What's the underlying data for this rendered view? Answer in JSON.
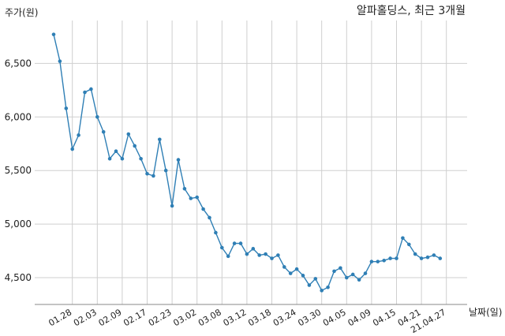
{
  "chart_data": {
    "type": "line",
    "title": "알파홀딩스, 최근 3개월",
    "ylabel": "주가(원)",
    "xlabel": "날짜(일)",
    "ylim": [
      4250,
      6900
    ],
    "yticks": [
      4500,
      5000,
      5500,
      6000,
      6500
    ],
    "ytick_labels": [
      "4,500",
      "5,000",
      "5,500",
      "6,000",
      "6,500"
    ],
    "xtick_labels": [
      "01.28",
      "02.03",
      "02.09",
      "02.17",
      "02.23",
      "03.02",
      "03.08",
      "03.12",
      "03.18",
      "03.24",
      "03.30",
      "04.05",
      "04.09",
      "04.15",
      "04.21",
      "21.04.27"
    ],
    "xtick_index": [
      3,
      7,
      11,
      15,
      19,
      23,
      27,
      31,
      35,
      39,
      43,
      47,
      51,
      55,
      59,
      63
    ],
    "grid": true,
    "series": [
      {
        "color": "#2f7fb5",
        "values": [
          6770,
          6520,
          6080,
          5700,
          5830,
          6230,
          6260,
          6000,
          5860,
          5610,
          5680,
          5610,
          5840,
          5730,
          5610,
          5470,
          5450,
          5790,
          5500,
          5170,
          5600,
          5330,
          5240,
          5250,
          5140,
          5060,
          4920,
          4780,
          4700,
          4820,
          4820,
          4720,
          4770,
          4710,
          4720,
          4680,
          4710,
          4600,
          4540,
          4580,
          4520,
          4430,
          4490,
          4380,
          4410,
          4560,
          4590,
          4500,
          4530,
          4480,
          4540,
          4650,
          4650,
          4660,
          4680,
          4680,
          4870,
          4810,
          4720,
          4680,
          4690,
          4710,
          4680
        ]
      }
    ]
  }
}
